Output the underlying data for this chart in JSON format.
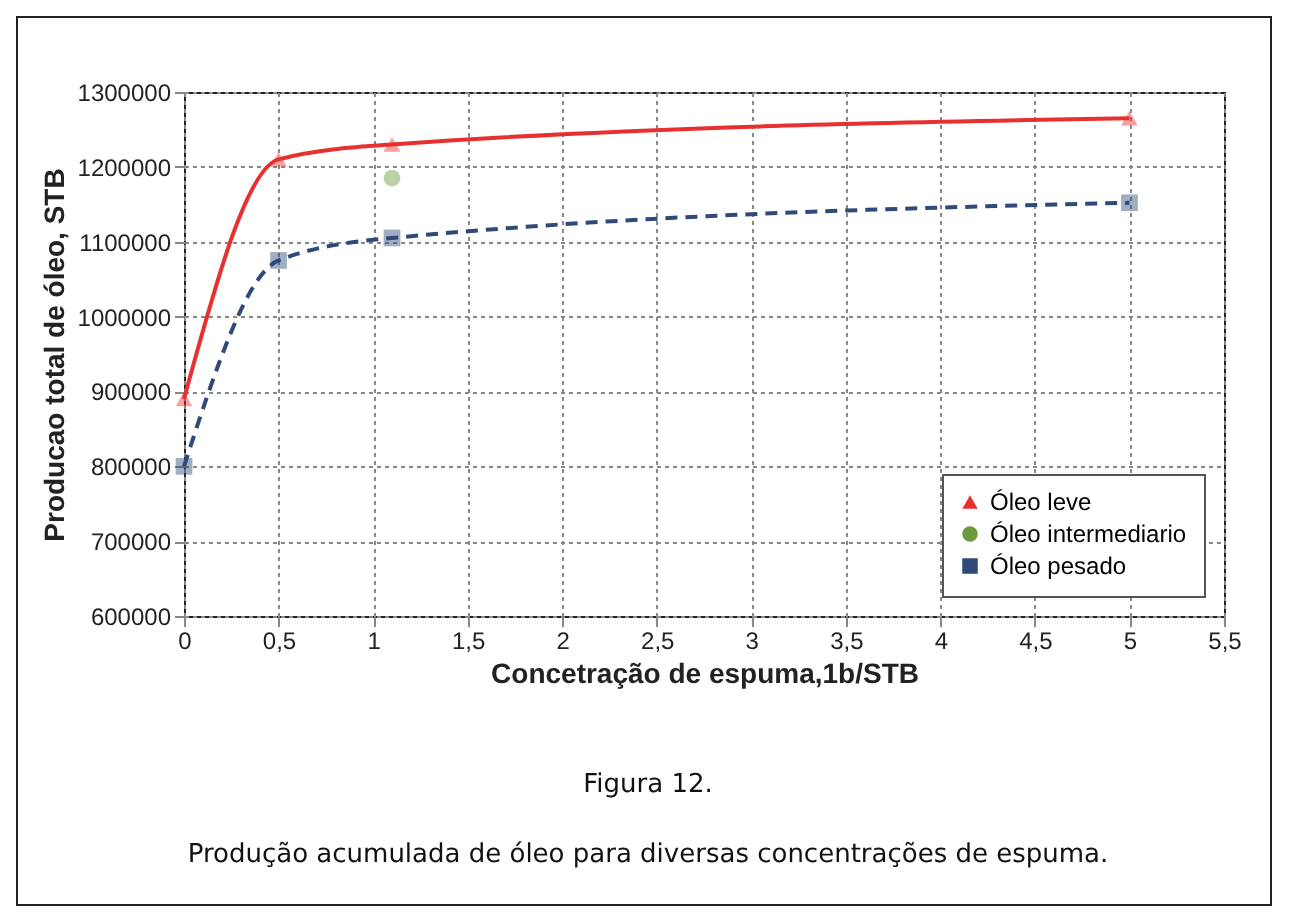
{
  "chart_data": {
    "type": "line",
    "xlabel": "Concetração de espuma,1b/STB",
    "ylabel": "Producao total de óleo, STB",
    "annotations": [
      "Figura 12.",
      "Produção acumulada de óleo para diversas concentrações de espuma."
    ],
    "xlim": [
      0,
      5.5
    ],
    "xticks": [
      0,
      {
        "value": 0.5,
        "label": "0,5"
      },
      1,
      {
        "value": 1.5,
        "label": "1,5"
      },
      2,
      {
        "value": 2.5,
        "label": "2,5"
      },
      3,
      {
        "value": 3.5,
        "label": "3,5"
      },
      4,
      {
        "value": 4.5,
        "label": "4,5"
      },
      5,
      {
        "value": 5.5,
        "label": "5,5"
      }
    ],
    "ylim": [
      600000,
      1300000
    ],
    "yticks": [
      600000,
      700000,
      800000,
      900000,
      1000000,
      1100000,
      1200000,
      1300000
    ],
    "grid": true,
    "legend": "bottom right",
    "series": [
      {
        "name": "Óleo leve",
        "type": "line",
        "color": "#e8312f",
        "marker": "triangle",
        "line_style": "solid",
        "x": [
          0,
          0.5,
          1.1,
          5
        ],
        "values": [
          890000,
          1210000,
          1230000,
          1265000
        ]
      },
      {
        "name": "Óleo intermediario",
        "type": "scatter",
        "color": "#6a9a3a",
        "marker": "circle",
        "x": [
          1.1
        ],
        "values": [
          1185000
        ]
      },
      {
        "name": "Óleo pesado",
        "type": "line",
        "color": "#2f4a7a",
        "marker": "square",
        "line_style": "dashed",
        "x": [
          0,
          0.5,
          1.1,
          5
        ],
        "values": [
          800000,
          1075000,
          1105000,
          1152000
        ]
      }
    ]
  }
}
